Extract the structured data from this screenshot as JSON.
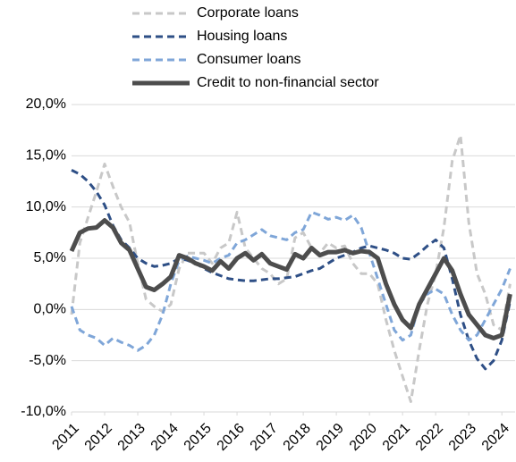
{
  "chart_data": {
    "type": "line",
    "x": [
      2011,
      2011.25,
      2011.5,
      2011.75,
      2012,
      2012.25,
      2012.5,
      2012.75,
      2013,
      2013.25,
      2013.5,
      2013.75,
      2014,
      2014.25,
      2014.5,
      2014.75,
      2015,
      2015.25,
      2015.5,
      2015.75,
      2016,
      2016.25,
      2016.5,
      2016.75,
      2017,
      2017.25,
      2017.5,
      2017.75,
      2018,
      2018.25,
      2018.5,
      2018.75,
      2019,
      2019.25,
      2019.5,
      2019.75,
      2020,
      2020.25,
      2020.5,
      2020.75,
      2021,
      2021.25,
      2021.5,
      2021.75,
      2022,
      2022.25,
      2022.5,
      2022.75,
      2023,
      2023.25,
      2023.5,
      2023.75,
      2024,
      2024.25
    ],
    "series": [
      {
        "name": "Corporate loans",
        "color": "#c8c8c8",
        "style": "dashed",
        "values": [
          -0.5,
          6.5,
          9.0,
          11.5,
          14.2,
          12.0,
          10.0,
          8.5,
          4.5,
          1.0,
          0.3,
          -0.2,
          0.5,
          4.0,
          5.5,
          5.5,
          5.5,
          4.5,
          6.0,
          6.5,
          9.5,
          6.0,
          5.0,
          4.0,
          3.5,
          2.5,
          3.0,
          7.0,
          7.5,
          6.0,
          5.5,
          6.5,
          6.0,
          6.2,
          4.5,
          3.5,
          3.5,
          2.5,
          -1.0,
          -4.0,
          -6.5,
          -9.0,
          -4.0,
          0.5,
          3.5,
          8.0,
          14.5,
          17.0,
          8.5,
          3.5,
          1.5,
          -1.5,
          -2.0,
          2.5
        ]
      },
      {
        "name": "Housing loans",
        "color": "#2e4f86",
        "style": "dashed",
        "values": [
          13.6,
          13.2,
          12.5,
          11.5,
          10.2,
          8.2,
          6.8,
          6.0,
          5.0,
          4.5,
          4.2,
          4.3,
          4.5,
          5.0,
          4.8,
          4.5,
          4.0,
          3.6,
          3.3,
          3.0,
          2.9,
          2.8,
          2.8,
          2.9,
          3.0,
          3.0,
          3.1,
          3.2,
          3.5,
          3.8,
          4.0,
          4.5,
          5.0,
          5.3,
          5.6,
          6.0,
          6.2,
          6.0,
          5.8,
          5.5,
          5.0,
          4.9,
          5.5,
          6.2,
          6.8,
          6.0,
          3.0,
          -0.5,
          -3.0,
          -4.8,
          -5.8,
          -5.0,
          -3.0,
          0.8
        ]
      },
      {
        "name": "Consumer loans",
        "color": "#7fa6d8",
        "style": "dashed",
        "values": [
          0.3,
          -2.0,
          -2.5,
          -2.8,
          -3.5,
          -2.8,
          -3.2,
          -3.5,
          -4.0,
          -3.5,
          -2.5,
          -0.5,
          2.5,
          4.8,
          5.2,
          5.0,
          4.8,
          4.5,
          5.0,
          5.3,
          6.5,
          6.8,
          7.3,
          7.8,
          7.2,
          7.0,
          6.8,
          7.5,
          7.8,
          9.5,
          9.2,
          8.8,
          9.0,
          8.7,
          9.2,
          8.0,
          5.5,
          3.0,
          0.5,
          -2.0,
          -3.0,
          -2.5,
          0.5,
          1.5,
          2.0,
          1.5,
          -0.5,
          -2.0,
          -3.0,
          -2.5,
          -1.0,
          0.5,
          2.0,
          4.0
        ]
      },
      {
        "name": "Credit to non-financial sector",
        "color": "#4d4d4d",
        "style": "solid",
        "values": [
          5.7,
          7.5,
          7.9,
          8.0,
          8.7,
          8.0,
          6.5,
          5.8,
          4.0,
          2.2,
          1.9,
          2.5,
          3.2,
          5.3,
          5.0,
          4.5,
          4.2,
          3.8,
          4.7,
          4.0,
          5.0,
          5.5,
          4.8,
          5.4,
          4.5,
          4.2,
          3.9,
          5.4,
          5.0,
          6.0,
          5.3,
          5.6,
          5.6,
          5.8,
          5.5,
          5.7,
          5.6,
          5.0,
          2.5,
          0.5,
          -1.0,
          -1.8,
          0.5,
          2.0,
          3.5,
          5.0,
          3.8,
          1.5,
          -0.5,
          -1.5,
          -2.5,
          -2.8,
          -2.5,
          1.5
        ]
      }
    ],
    "xlim": [
      2011,
      2024.4
    ],
    "xticks": [
      2011,
      2012,
      2013,
      2014,
      2015,
      2016,
      2017,
      2018,
      2019,
      2020,
      2021,
      2022,
      2023,
      2024
    ],
    "ylim": [
      -10,
      20
    ],
    "yticks": [
      {
        "value": -10,
        "label": "-10,0%"
      },
      {
        "value": -5,
        "label": "-5,0%"
      },
      {
        "value": 0,
        "label": "0,0%"
      },
      {
        "value": 5,
        "label": "5,0%"
      },
      {
        "value": 10,
        "label": "10,0%"
      },
      {
        "value": 15,
        "label": "15,0%"
      },
      {
        "value": 20,
        "label": "20,0%"
      }
    ],
    "grid": true,
    "legend": "top"
  }
}
